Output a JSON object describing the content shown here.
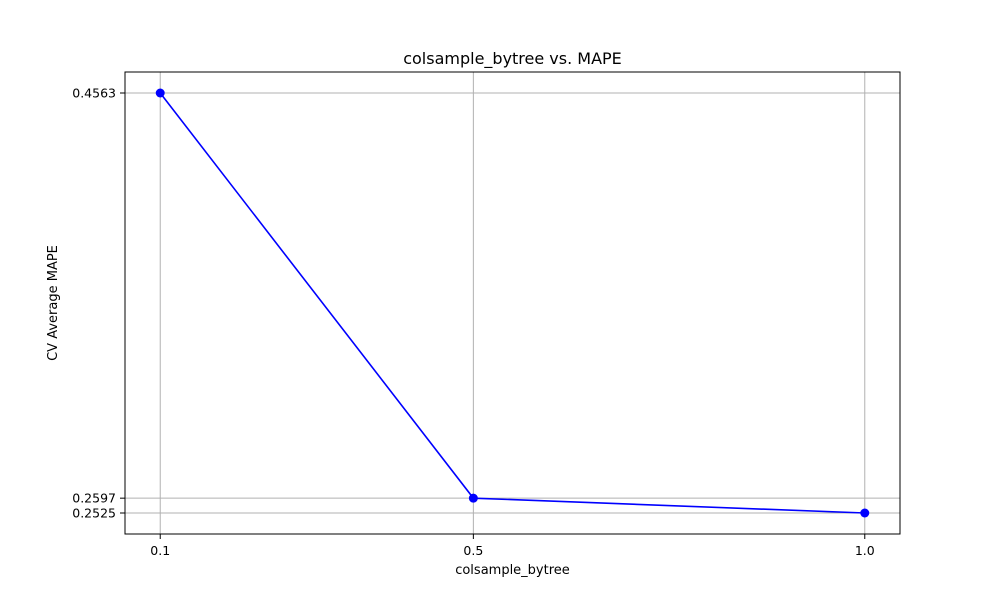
{
  "chart_data": {
    "type": "line",
    "title": "colsample_bytree vs. MAPE",
    "xlabel": "colsample_bytree",
    "ylabel": "CV Average MAPE",
    "x": [
      0.1,
      0.5,
      1.0
    ],
    "y": [
      0.4563,
      0.2597,
      0.2525
    ],
    "x_ticks": [
      0.1,
      0.5,
      1.0
    ],
    "x_tick_labels": [
      "0.1",
      "0.5",
      "1.0"
    ],
    "y_ticks": [
      0.4563,
      0.2597,
      0.2525
    ],
    "y_tick_labels": [
      "0.4563",
      "0.2597",
      "0.2525"
    ],
    "xlim": [
      0.055,
      1.045
    ],
    "ylim": [
      0.24231,
      0.46649
    ],
    "grid": true,
    "marker": "circle",
    "colors": {
      "line": "#0000ff",
      "grid": "#b0b0b0",
      "axes": "#000000"
    }
  }
}
